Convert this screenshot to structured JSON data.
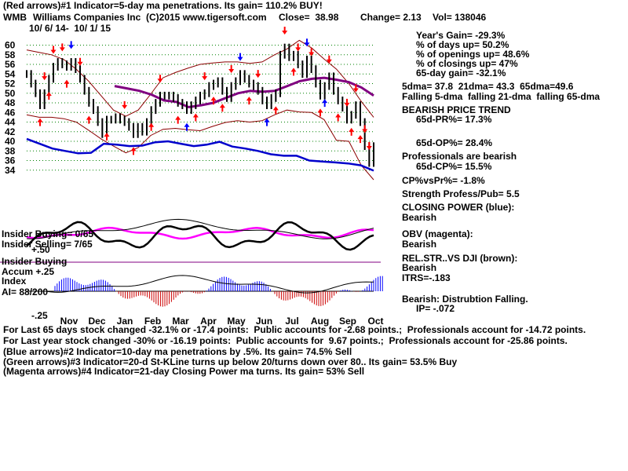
{
  "header": {
    "line1": "(Red arrows)#1 Indicator=5-day ma penetrations. Its gain= 110.2% BUY!",
    "ticker": "WMB",
    "company": "Williams Companies Inc",
    "copyright": "(C)2015 www.tigersoft.com",
    "close": "Close=  38.98",
    "change": "Change= 2.13",
    "vol": "Vol= 138046",
    "date_range": "10/ 6/ 14-  10/ 1/ 15"
  },
  "panel_labels": {
    "insider_buying_ratio": "Insider Buying= 0/65",
    "insider_selling_ratio": "Insider Selling= 7/65",
    "plus50": "+.50",
    "insider_buying": "Insider Buying",
    "accum": "Accum +.25",
    "index": "Index",
    "ai": "AI= 88/200",
    "minus25": "-.25"
  },
  "stats": {
    "years_gain": "Year's Gain= -29.3%",
    "days_up": "% of days up= 50.2%",
    "openings_up": "% of openings up= 48.6%",
    "closings_up": "% of closings up= 47%",
    "gain_65": "65-day gain= -32.1%",
    "dma_values": "5dma= 37.8  21dma= 43.3  65dma=49.6",
    "dma_trend": "Falling 5-dma  falling 21-dma  falling 65-dma",
    "trend_title": "BEARISH PRICE TREND",
    "pr65": "65d-PR%= 17.3%",
    "op65": "65d-OP%= 28.4%",
    "professionals": "Professionals are bearish",
    "cp65": "65d-CP%= 15.5%",
    "cpvspr": "CP%vsPr%= -1.8%",
    "strength": "Strength Profess/Pub= 5.5",
    "closing_power_title": "CLOSING POWER (blue):",
    "closing_power_value": "Bearish",
    "obv_title": "OBV (magenta):",
    "obv_value": "Bearish",
    "relstr_title": "REL.STR..VS DJI (brown):",
    "relstr_value": "Bearish",
    "itrs": "ITRS=-.183",
    "distribution": "Bearish: Distrubtion Falling.",
    "ip": "IP= -.072"
  },
  "footer": {
    "line1": "For Last 65 days stock changed -32.1% or -17.4 points:  Public accounts for -2.68 points.;  Professionals account for -14.72 points.",
    "line2": "For Last year stock changed -30% or -16.19 points:  Public accounts for  9.67 points.;  Professionals account for -25.86 points.",
    "line3": "(Blue arrows)#2 Indicator=10-day ma penetrations by .5%. Its gain= 74.5% Sell",
    "line4": "(Green arrows)#3 Indicator=20-d St-KLine turns up below 20/turns down over 80.. Its gain= 53.5% Buy",
    "line5": "(Magenta arrows)#4 Indicator=21-day Closing Power ma turns. Its gain= 53% Sell"
  },
  "colors": {
    "price": "#000000",
    "band": "#8b0000",
    "ma65": "#800080",
    "closing_power": "#0000cc",
    "obv": "#ff00ff",
    "accum_up": "#0000ff",
    "accum_down": "#cc0000",
    "buy_arrow": "#ff0000",
    "sell_arrow": "#ff0000",
    "blue_arrow": "#0000ff",
    "grid": "#008000"
  },
  "chart_data": {
    "type": "line",
    "title": "",
    "x_ticks": [
      "Nov",
      "Dec",
      "Jan",
      "Feb",
      "Mar",
      "Apr",
      "May",
      "Jun",
      "Jul",
      "Aug",
      "Sep",
      "Oct"
    ],
    "y_ticks": [
      34,
      36,
      38,
      40,
      42,
      44,
      46,
      48,
      50,
      52,
      54,
      56,
      58,
      60
    ],
    "ylim": [
      33,
      61
    ],
    "grid": true,
    "close": [
      54,
      52,
      50,
      47.5,
      50,
      53,
      55.5,
      56.5,
      56,
      55.5,
      56.5,
      55,
      53,
      50.5,
      48,
      46.5,
      44,
      41.5,
      44.5,
      44.5,
      45,
      44.5,
      44,
      43,
      41.5,
      43,
      42,
      44,
      46.5,
      48,
      49.5,
      49.5,
      49.5,
      49,
      48,
      47.5,
      46.5,
      47.5,
      48.5,
      49.5,
      50,
      51.5,
      52,
      52.5,
      50.5,
      49,
      51.5,
      52.5,
      54,
      53,
      52,
      51.5,
      50.5,
      48.5,
      47.5,
      49,
      50,
      58,
      59.5,
      57.5,
      58,
      56,
      54,
      57,
      55,
      52,
      49.5,
      51.5,
      53.5,
      50.5,
      48.5,
      47,
      44.5,
      45.5,
      47.5,
      44,
      39,
      35.5,
      38.98
    ],
    "series": [
      {
        "name": "",
        "values": [
          59,
          58.5,
          58,
          57,
          55,
          52.5,
          49.5,
          46.5,
          45.2,
          46.5,
          49.8,
          53.2,
          54.3,
          55.2,
          56,
          56.3,
          56.5,
          56.5,
          56.2,
          56.5,
          58,
          59.2,
          61,
          59.4,
          57.1,
          55,
          52,
          48.3,
          45
        ]
      },
      {
        "name": "",
        "values": [
          45.5,
          45,
          45,
          44.7,
          44,
          42.3,
          40.5,
          39,
          37.6,
          38.7,
          41.2,
          42.5,
          42.7,
          42.4,
          42.2,
          43.1,
          43.9,
          44.3,
          44,
          44.3,
          45.5,
          46.5,
          46.1,
          46,
          44.5,
          40.2,
          40,
          35,
          32
        ]
      },
      {
        "name": "",
        "values": [
          51.5,
          51,
          50.5,
          49.7,
          48.5,
          48.2,
          47.1,
          47.5,
          48,
          49,
          50,
          50.5,
          50.3,
          50.5,
          51.5,
          52.5,
          53,
          53.2,
          52.8,
          52.3,
          51.2,
          49.5
        ]
      },
      {
        "name": "Closing Power (blue)",
        "values": [
          40.5,
          39.5,
          38.5,
          38,
          37.5,
          37.6,
          39.5,
          39.3,
          39,
          39.1,
          39.8,
          40,
          39.5,
          39,
          39.3,
          39.9,
          38.9,
          38.5,
          38,
          37.3,
          37,
          37,
          36,
          35.8,
          35.6,
          35.4,
          35,
          33.9
        ]
      }
    ]
  }
}
